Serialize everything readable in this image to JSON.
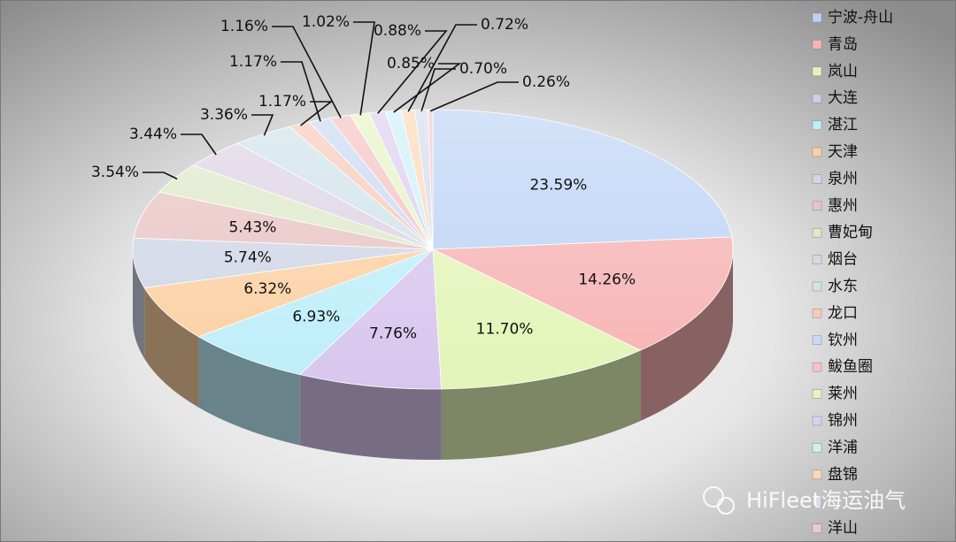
{
  "chart_data": {
    "type": "pie",
    "categories": [
      "宁波-舟山",
      "青岛",
      "岚山",
      "大连",
      "湛江",
      "天津",
      "泉州",
      "惠州",
      "曹妃甸",
      "烟台",
      "水东",
      "龙口",
      "钦州",
      "鲅鱼圈",
      "莱州",
      "锦州",
      "洋浦",
      "盘锦",
      null,
      "洋山"
    ],
    "values": [
      23.59,
      14.26,
      11.7,
      7.76,
      6.93,
      6.32,
      5.74,
      5.43,
      3.54,
      3.44,
      3.36,
      1.17,
      1.17,
      1.16,
      1.02,
      0.88,
      0.85,
      0.72,
      0.7,
      0.26
    ],
    "value_labels": [
      "23.59%",
      "14.26%",
      "11.70%",
      "7.76%",
      "6.93%",
      "6.32%",
      "5.74%",
      "5.43%",
      "3.54%",
      "3.44%",
      "3.36%",
      "1.17%",
      "1.17%",
      "1.16%",
      "1.02%",
      "0.88%",
      "0.85%",
      "0.72%",
      "0.70%",
      "0.26%"
    ],
    "colors": [
      "#bcd3f5",
      "#f7b3b3",
      "#e3f5b8",
      "#d8c6ee",
      "#bdeefa",
      "#fbd0a3",
      "#cfd6e6",
      "#e9c3c3",
      "#dde9c8",
      "#ddd3e3",
      "#cfe3ea",
      "#f7c9b9",
      "#c9d8f4",
      "#f6c2c2",
      "#e5f4c2",
      "#dccff0",
      "#cdf0f8",
      "#fbd9b6",
      "#d6dced",
      "#efcaca"
    ],
    "watermark": "HiFleet海运油气"
  }
}
